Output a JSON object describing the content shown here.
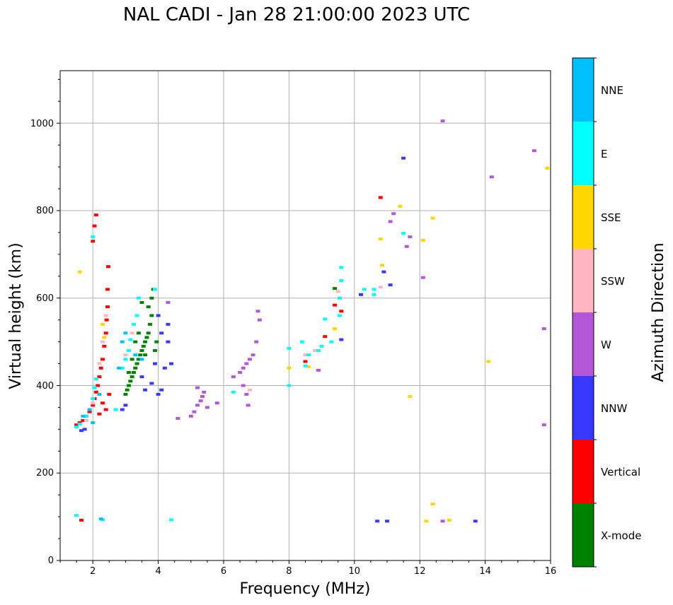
{
  "chart_data": {
    "type": "scatter",
    "title": "NAL CADI - Jan 28 21:00:00 2023 UTC",
    "xlabel": "Frequency (MHz)",
    "ylabel": "Virtual height (km)",
    "xlim": [
      1,
      16
    ],
    "ylim": [
      0,
      1120
    ],
    "xticks": [
      "2",
      "4",
      "6",
      "8",
      "10",
      "12",
      "14",
      "16"
    ],
    "yticks": [
      "0",
      "200",
      "400",
      "600",
      "800",
      "1000"
    ],
    "grid": true,
    "colorbar": {
      "label": "Azimuth Direction",
      "categories": [
        "X-mode",
        "Vertical",
        "NNW",
        "W",
        "SSW",
        "SSE",
        "E",
        "NNE"
      ],
      "colors": [
        "#008000",
        "#ff0000",
        "#3838ff",
        "#b457d6",
        "#ffb6c1",
        "#ffd700",
        "#00ffff",
        "#00bfff"
      ]
    },
    "series": [
      {
        "name": "X-mode",
        "points": [
          [
            3.0,
            380
          ],
          [
            3.05,
            390
          ],
          [
            3.1,
            400
          ],
          [
            3.15,
            410
          ],
          [
            3.2,
            420
          ],
          [
            3.25,
            430
          ],
          [
            3.3,
            440
          ],
          [
            3.35,
            450
          ],
          [
            3.4,
            460
          ],
          [
            3.45,
            470
          ],
          [
            3.5,
            480
          ],
          [
            3.55,
            490
          ],
          [
            3.6,
            500
          ],
          [
            3.65,
            510
          ],
          [
            3.7,
            520
          ],
          [
            3.75,
            540
          ],
          [
            3.8,
            560
          ],
          [
            3.7,
            580
          ],
          [
            3.8,
            600
          ],
          [
            3.85,
            620
          ],
          [
            3.5,
            590
          ],
          [
            3.4,
            520
          ],
          [
            3.3,
            500
          ],
          [
            3.2,
            460
          ],
          [
            3.1,
            430
          ],
          [
            3.6,
            470
          ],
          [
            3.9,
            480
          ],
          [
            3.95,
            500
          ],
          [
            9.4,
            622
          ]
        ]
      },
      {
        "name": "Vertical",
        "points": [
          [
            1.5,
            310
          ],
          [
            1.6,
            315
          ],
          [
            1.7,
            320
          ],
          [
            1.8,
            330
          ],
          [
            1.9,
            340
          ],
          [
            2.0,
            355
          ],
          [
            2.05,
            370
          ],
          [
            2.1,
            385
          ],
          [
            2.15,
            400
          ],
          [
            2.2,
            420
          ],
          [
            2.25,
            440
          ],
          [
            2.3,
            460
          ],
          [
            2.35,
            490
          ],
          [
            2.4,
            520
          ],
          [
            2.42,
            550
          ],
          [
            2.45,
            580
          ],
          [
            2.45,
            620
          ],
          [
            2.47,
            672
          ],
          [
            2.1,
            790
          ],
          [
            2.05,
            765
          ],
          [
            2.0,
            730
          ],
          [
            2.3,
            360
          ],
          [
            2.4,
            345
          ],
          [
            2.5,
            380
          ],
          [
            2.2,
            335
          ],
          [
            1.65,
            92
          ],
          [
            8.5,
            455
          ],
          [
            9.4,
            584
          ],
          [
            9.6,
            570
          ],
          [
            9.1,
            512
          ],
          [
            10.8,
            830
          ]
        ]
      },
      {
        "name": "NNW",
        "points": [
          [
            1.65,
            297
          ],
          [
            1.75,
            300
          ],
          [
            2.9,
            345
          ],
          [
            3.0,
            355
          ],
          [
            3.5,
            420
          ],
          [
            3.6,
            390
          ],
          [
            3.8,
            405
          ],
          [
            4.0,
            380
          ],
          [
            4.1,
            390
          ],
          [
            4.2,
            440
          ],
          [
            4.3,
            500
          ],
          [
            4.3,
            540
          ],
          [
            4.1,
            520
          ],
          [
            4.0,
            560
          ],
          [
            4.4,
            450
          ],
          [
            3.9,
            450
          ],
          [
            10.7,
            90
          ],
          [
            11.0,
            90
          ],
          [
            11.5,
            920
          ],
          [
            13.7,
            90
          ],
          [
            9.6,
            505
          ],
          [
            10.2,
            608
          ],
          [
            11.1,
            630
          ],
          [
            10.9,
            660
          ]
        ]
      },
      {
        "name": "W",
        "points": [
          [
            4.3,
            590
          ],
          [
            4.6,
            325
          ],
          [
            5.0,
            330
          ],
          [
            5.1,
            340
          ],
          [
            5.2,
            355
          ],
          [
            5.3,
            365
          ],
          [
            5.35,
            375
          ],
          [
            5.4,
            385
          ],
          [
            5.2,
            395
          ],
          [
            5.5,
            350
          ],
          [
            5.8,
            360
          ],
          [
            6.3,
            420
          ],
          [
            6.5,
            430
          ],
          [
            6.6,
            440
          ],
          [
            6.7,
            450
          ],
          [
            6.8,
            460
          ],
          [
            6.9,
            470
          ],
          [
            7.0,
            500
          ],
          [
            7.1,
            550
          ],
          [
            7.05,
            570
          ],
          [
            6.7,
            380
          ],
          [
            6.75,
            355
          ],
          [
            6.6,
            400
          ],
          [
            8.9,
            435
          ],
          [
            11.2,
            793
          ],
          [
            11.1,
            775
          ],
          [
            11.7,
            740
          ],
          [
            11.6,
            718
          ],
          [
            12.1,
            647
          ],
          [
            12.7,
            1005
          ],
          [
            12.7,
            90
          ],
          [
            14.2,
            877
          ],
          [
            15.5,
            937
          ],
          [
            15.8,
            530
          ],
          [
            15.8,
            310
          ]
        ]
      },
      {
        "name": "SSW",
        "points": [
          [
            1.8,
            320
          ],
          [
            2.0,
            360
          ],
          [
            2.2,
            450
          ],
          [
            2.3,
            500
          ],
          [
            2.4,
            560
          ],
          [
            3.0,
            470
          ],
          [
            3.2,
            520
          ],
          [
            6.8,
            390
          ],
          [
            8.5,
            470
          ],
          [
            8.8,
            480
          ],
          [
            9.5,
            615
          ],
          [
            10.8,
            625
          ]
        ]
      },
      {
        "name": "SSE",
        "points": [
          [
            1.6,
            660
          ],
          [
            2.35,
            510
          ],
          [
            2.3,
            540
          ],
          [
            8.0,
            440
          ],
          [
            8.6,
            443
          ],
          [
            9.4,
            530
          ],
          [
            10.8,
            735
          ],
          [
            10.85,
            675
          ],
          [
            11.4,
            810
          ],
          [
            11.7,
            375
          ],
          [
            12.1,
            732
          ],
          [
            12.4,
            783
          ],
          [
            12.4,
            129
          ],
          [
            12.2,
            90
          ],
          [
            12.9,
            92
          ],
          [
            14.1,
            455
          ],
          [
            15.9,
            897
          ]
        ]
      },
      {
        "name": "E",
        "points": [
          [
            1.5,
            305
          ],
          [
            1.6,
            312
          ],
          [
            1.8,
            330
          ],
          [
            2.0,
            370
          ],
          [
            2.05,
            395
          ],
          [
            2.1,
            415
          ],
          [
            2.7,
            345
          ],
          [
            2.9,
            440
          ],
          [
            3.0,
            460
          ],
          [
            3.1,
            480
          ],
          [
            3.15,
            505
          ],
          [
            3.25,
            540
          ],
          [
            3.35,
            560
          ],
          [
            3.4,
            600
          ],
          [
            3.9,
            620
          ],
          [
            2.0,
            740
          ],
          [
            1.5,
            103
          ],
          [
            2.3,
            93
          ],
          [
            4.4,
            93
          ],
          [
            6.3,
            385
          ],
          [
            8.0,
            400
          ],
          [
            8.0,
            485
          ],
          [
            8.4,
            500
          ],
          [
            8.5,
            445
          ],
          [
            8.6,
            470
          ],
          [
            8.9,
            480
          ],
          [
            9.0,
            490
          ],
          [
            9.1,
            552
          ],
          [
            9.3,
            500
          ],
          [
            9.55,
            560
          ],
          [
            9.55,
            600
          ],
          [
            9.6,
            640
          ],
          [
            9.6,
            670
          ],
          [
            10.3,
            620
          ],
          [
            10.6,
            608
          ],
          [
            10.6,
            620
          ],
          [
            11.5,
            748
          ]
        ]
      },
      {
        "name": "NNE",
        "points": [
          [
            1.7,
            330
          ],
          [
            1.9,
            345
          ],
          [
            2.0,
            315
          ],
          [
            2.2,
            380
          ],
          [
            2.25,
            95
          ],
          [
            2.8,
            440
          ],
          [
            2.9,
            500
          ],
          [
            3.0,
            520
          ],
          [
            3.3,
            470
          ],
          [
            3.5,
            460
          ]
        ]
      }
    ]
  }
}
